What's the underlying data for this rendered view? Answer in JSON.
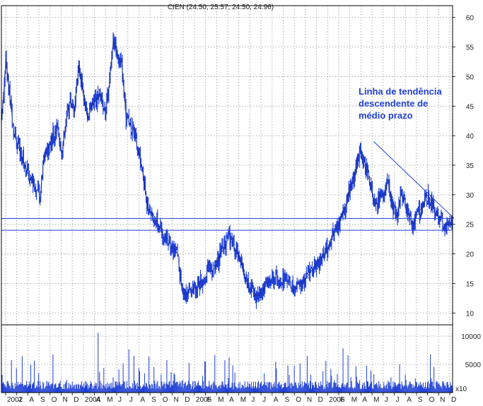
{
  "chart_data": {
    "type": "line",
    "title": "CIEN (24.50, 25.57, 24.50, 24.96)",
    "xlabel": "",
    "ylabel": "",
    "price_axis": {
      "ylim": [
        8,
        62
      ],
      "ticks": [
        "10",
        "15",
        "20",
        "25",
        "30",
        "35",
        "40",
        "45",
        "50",
        "55",
        "60"
      ]
    },
    "volume_axis": {
      "ylim": [
        0,
        12000
      ],
      "ticks": [
        "5000",
        "10000"
      ],
      "unit_label": "x10"
    },
    "x_axis": {
      "tick_labels": [
        "2002",
        "J",
        "A",
        "S",
        "O",
        "N",
        "D",
        "2004",
        "A",
        "M",
        "J",
        "J",
        "A",
        "S",
        "O",
        "N",
        "D",
        "2005",
        "F",
        "M",
        "A",
        "M",
        "J",
        "J",
        "A",
        "S",
        "O",
        "N",
        "D",
        "2006",
        "F",
        "M",
        "A",
        "M",
        "J",
        "J",
        "A",
        "S",
        "O",
        "N",
        "D"
      ],
      "note": "month ticks run continuously from the start of the chart to the end"
    },
    "grid": true,
    "series": [
      {
        "kind": "price",
        "color": "#1f3fd6",
        "x": [
          0,
          6,
          12,
          18,
          24,
          30,
          36,
          42,
          48,
          54,
          60,
          66,
          72,
          78,
          84,
          90,
          96,
          102,
          108,
          114,
          120,
          126,
          132,
          138,
          144,
          150,
          156,
          162,
          168,
          174,
          180,
          186,
          192,
          198,
          204,
          210,
          216,
          222,
          228,
          234,
          240,
          246,
          252,
          258,
          264,
          270,
          276,
          282,
          288,
          294,
          300,
          306,
          312,
          318,
          324,
          330,
          336,
          342,
          348,
          354,
          360,
          366,
          372,
          378,
          384,
          390,
          396,
          402,
          408,
          414,
          420,
          426,
          432,
          438,
          444,
          450,
          456,
          462,
          468,
          474,
          480,
          486,
          492,
          498,
          504,
          510,
          516,
          522,
          528,
          534,
          540,
          546,
          552,
          558,
          564,
          570,
          576,
          582,
          588,
          594,
          600,
          606,
          612,
          618,
          624,
          630
        ],
        "y": [
          42,
          53,
          46,
          40,
          38,
          36,
          34,
          33,
          31,
          30,
          37,
          38,
          40,
          41,
          37,
          42,
          46,
          44,
          52,
          47,
          43,
          45,
          46,
          47,
          44,
          48,
          56,
          54,
          52,
          43,
          42,
          40,
          37,
          33,
          28,
          27,
          26,
          24,
          23,
          22,
          21,
          20,
          14,
          13,
          14,
          14,
          15,
          16,
          17,
          17,
          18,
          20,
          21,
          23,
          21,
          20,
          18,
          15,
          14,
          13,
          13,
          14,
          15,
          16,
          16,
          16,
          15,
          15,
          14,
          15,
          15,
          16,
          17,
          18,
          19,
          20,
          21,
          23,
          24,
          26,
          28,
          31,
          33,
          37,
          36,
          34,
          31,
          28,
          30,
          30,
          32,
          28,
          26,
          30,
          28,
          26,
          25,
          27,
          28,
          30,
          29,
          27,
          26,
          25,
          25,
          25
        ],
        "x_domain": [
          0,
          630
        ]
      },
      {
        "kind": "volume",
        "color": "#1f3fd6"
      }
    ],
    "reference_lines": [
      {
        "kind": "horizontal",
        "value": 26
      },
      {
        "kind": "horizontal",
        "value": 24
      },
      {
        "kind": "trendline",
        "from": {
          "x": 520,
          "y": 39
        },
        "to": {
          "x": 632,
          "y": 26
        }
      }
    ],
    "annotation": {
      "lines": [
        "Linha de tendência",
        "descendente de",
        "médio prazo"
      ]
    }
  }
}
